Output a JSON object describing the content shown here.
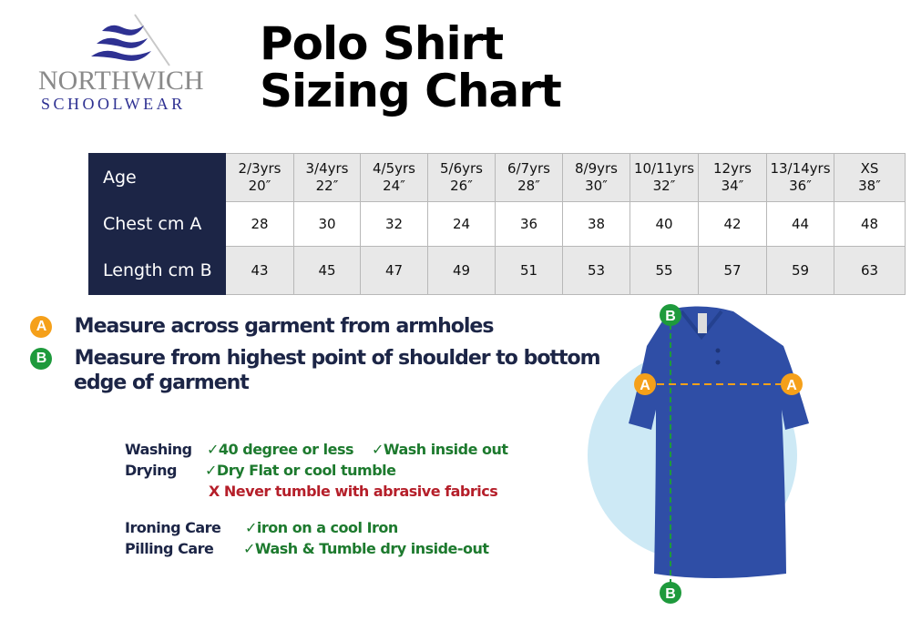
{
  "logo": {
    "line1": "NORTHWICH",
    "line2": "SCHOOLWEAR"
  },
  "title": {
    "line1": "Polo Shirt",
    "line2": "Sizing Chart"
  },
  "table": {
    "row_labels": [
      "Age",
      "Chest cm A",
      "Length cm B"
    ],
    "ages": [
      "2/3yrs",
      "3/4yrs",
      "4/5yrs",
      "5/6yrs",
      "6/7yrs",
      "8/9yrs",
      "10/11yrs",
      "12yrs",
      "13/14yrs",
      "XS"
    ],
    "inches": [
      "20″",
      "22″",
      "24″",
      "26″",
      "28″",
      "30″",
      "32″",
      "34″",
      "36″",
      "38″"
    ],
    "chest": [
      "28",
      "30",
      "32",
      "24",
      "36",
      "38",
      "40",
      "42",
      "44",
      "48"
    ],
    "length": [
      "43",
      "45",
      "47",
      "49",
      "51",
      "53",
      "55",
      "57",
      "59",
      "63"
    ]
  },
  "measures": [
    {
      "badge": "A",
      "color": "#f5a01a",
      "text": "Measure across garment  from armholes"
    },
    {
      "badge": "B",
      "color": "#1e9a3c",
      "text": "Measure from highest point of shoulder to bottom",
      "text2": "edge of garment"
    }
  ],
  "care": {
    "washing": {
      "label": "Washing",
      "items": [
        "✓40 degree or less",
        "✓Wash inside out"
      ]
    },
    "drying": {
      "label": "Drying",
      "items": [
        "✓Dry Flat or cool tumble"
      ],
      "warning": "X Never tumble with abrasive fabrics"
    },
    "ironing": {
      "label": "Ironing Care",
      "item": "✓iron on a cool Iron"
    },
    "pilling": {
      "label": "Pilling Care",
      "item": "✓Wash & Tumble dry inside-out"
    }
  },
  "colors": {
    "navy": "#1c2546",
    "shirt": "#2f4ea6",
    "circle": "#cde9f5",
    "green": "#1d7a2e",
    "red": "#b51f2a",
    "orange": "#f5a01a"
  }
}
